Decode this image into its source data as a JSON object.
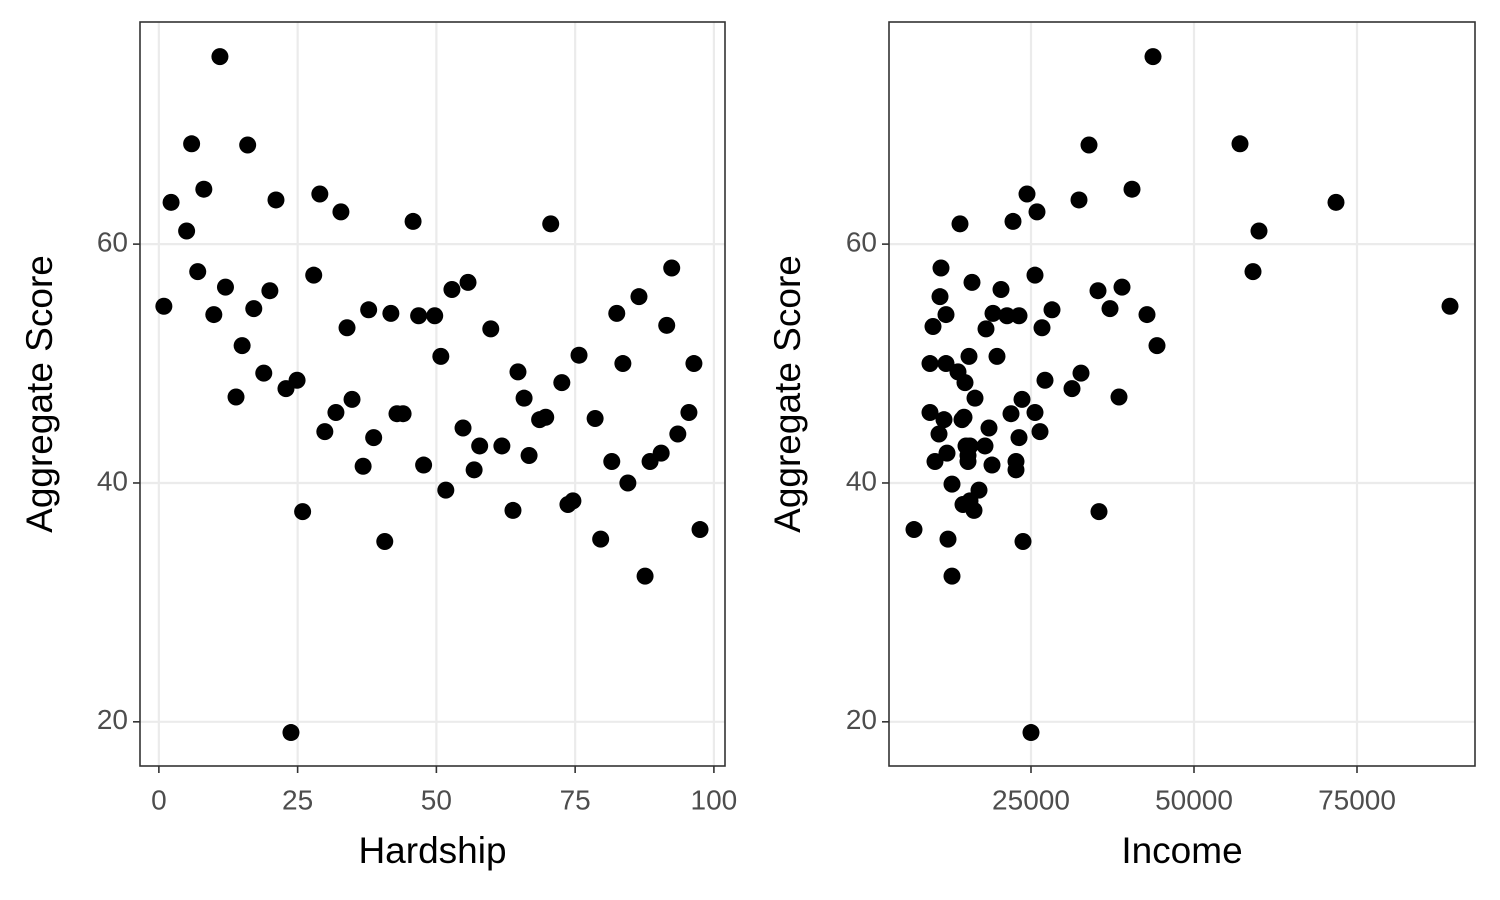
{
  "chart_data": [
    {
      "type": "scatter",
      "x_label": "Hardship",
      "y_label": "Aggregate Score",
      "color": "#000000",
      "grid": true,
      "xlim": [
        -3.4,
        102
      ],
      "ylim": [
        16.3,
        78.6
      ],
      "xticks": [
        0,
        25,
        50,
        75,
        100
      ],
      "yticks": [
        20,
        40,
        60
      ],
      "x": [
        0.9,
        2.2,
        5,
        5.9,
        7,
        8.1,
        9.9,
        11,
        12,
        13.9,
        15,
        16,
        17.1,
        18.9,
        20,
        21.1,
        22.9,
        23.8,
        24.9,
        25.9,
        29,
        29.9,
        27.9,
        31.9,
        32.8,
        33.9,
        34.8,
        36.8,
        37.8,
        38.7,
        40.7,
        41.8,
        42.9,
        44,
        45.8,
        46.8,
        47.7,
        49.7,
        50.8,
        51.7,
        52.8,
        54.8,
        55.7,
        56.8,
        57.8,
        59.8,
        61.8,
        63.8,
        64.7,
        65.8,
        66.7,
        68.6,
        69.7,
        70.6,
        72.6,
        73.7,
        74.6,
        75.7,
        78.6,
        79.6,
        81.6,
        82.5,
        83.6,
        84.5,
        86.5,
        87.6,
        88.5,
        90.5,
        91.5,
        92.4,
        93.5,
        95.5,
        96.4,
        97.5
      ],
      "values": [
        54.8,
        63.5,
        61.1,
        68.4,
        57.7,
        64.6,
        54.1,
        75.7,
        56.4,
        47.2,
        51.5,
        68.3,
        54.6,
        49.2,
        56.1,
        63.7,
        47.9,
        19.1,
        48.6,
        37.6,
        64.2,
        44.3,
        57.4,
        45.9,
        62.7,
        53,
        47,
        41.4,
        54.5,
        43.8,
        35.1,
        54.2,
        45.8,
        45.8,
        61.9,
        54,
        41.5,
        54,
        50.6,
        39.4,
        56.2,
        44.6,
        56.8,
        41.1,
        43.1,
        52.9,
        43.1,
        37.7,
        49.3,
        47.1,
        42.3,
        45.3,
        45.5,
        61.7,
        48.4,
        38.2,
        38.5,
        50.7,
        45.4,
        35.3,
        41.8,
        54.2,
        50,
        40,
        55.6,
        32.2,
        41.8,
        42.5,
        53.2,
        58,
        44.1,
        45.9,
        50,
        36.1
      ]
    },
    {
      "type": "scatter",
      "x_label": "Income",
      "y_label": "Aggregate Score",
      "color": "#000000",
      "grid": true,
      "xlim": [
        3221,
        93098
      ],
      "ylim": [
        16.3,
        78.6
      ],
      "xticks": [
        25000,
        50000,
        75000
      ],
      "yticks": [
        20,
        40,
        60
      ],
      "x": [
        7055,
        9509,
        9509,
        9969,
        10276,
        10890,
        11196,
        11043,
        11656,
        11963,
        11963,
        12117,
        12270,
        12883,
        12883,
        14110,
        13804,
        14417,
        14571,
        14877,
        14724,
        15031,
        15337,
        15337,
        15491,
        15644,
        15644,
        15951,
        16258,
        16411,
        17025,
        17945,
        18098,
        18558,
        19018,
        19172,
        19785,
        20399,
        21319,
        21933,
        22239,
        22699,
        22699,
        23160,
        23160,
        23620,
        23773,
        24387,
        25000,
        25613,
        25613,
        25920,
        26380,
        26687,
        27147,
        28221,
        31288,
        32669,
        32362,
        33896,
        35429,
        35276,
        37117,
        38497,
        38957,
        40491,
        42791,
        43712,
        44325,
        57055,
        59049,
        59969,
        71779,
        89264
      ],
      "values": [
        36.1,
        50,
        45.9,
        53.1,
        41.8,
        44.1,
        58,
        55.6,
        45.3,
        54.1,
        50,
        42.5,
        35.3,
        39.9,
        32.2,
        61.7,
        49.3,
        45.3,
        38.2,
        48.4,
        45.5,
        43.1,
        41.8,
        42.3,
        50.6,
        43.1,
        38.5,
        56.8,
        37.7,
        47.1,
        39.4,
        43.1,
        52.9,
        44.6,
        41.5,
        54.2,
        50.6,
        56.2,
        54,
        45.8,
        61.9,
        41.8,
        41.1,
        54,
        43.8,
        47,
        35.1,
        64.2,
        19.1,
        57.4,
        45.9,
        62.7,
        44.3,
        53,
        48.6,
        54.5,
        47.9,
        49.2,
        63.7,
        68.3,
        37.6,
        56.1,
        54.6,
        47.2,
        56.4,
        64.6,
        54.1,
        75.7,
        51.5,
        68.4,
        57.7,
        61.1,
        63.5,
        54.8
      ]
    }
  ]
}
